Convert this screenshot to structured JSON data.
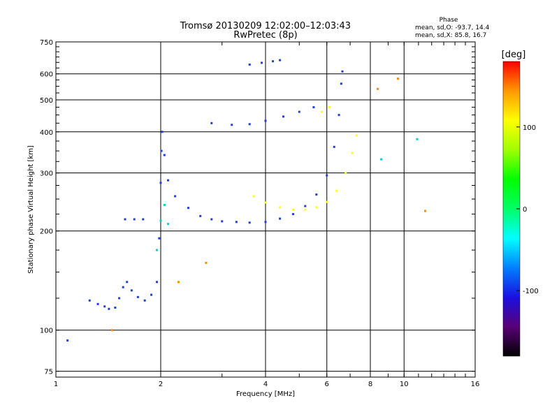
{
  "chart_data": {
    "type": "scatter",
    "title": "Tromsø 20130209 12:02:00–12:03:43",
    "subtitle": "RwPretec (8p)",
    "xlabel": "Frequency [MHz]",
    "ylabel": "Stationary phase Virtual Height [km]",
    "x_scale": "log",
    "y_scale": "log",
    "xlim": [
      1,
      16
    ],
    "ylim": [
      72,
      750
    ],
    "x_ticks": [
      1,
      2,
      4,
      6,
      8,
      10,
      16
    ],
    "y_ticks": [
      75,
      100,
      200,
      300,
      400,
      500,
      600,
      750
    ],
    "grid": true,
    "stats": {
      "heading": "Phase",
      "line_o": "mean, sd,O: -93.7, 14.4",
      "line_x": "mean, sd,X:  85.8, 16.7"
    },
    "colorbar": {
      "label": "[deg]",
      "range": [
        -180,
        180
      ],
      "ticks": [
        -100,
        0,
        100
      ],
      "stops": [
        "#000000",
        "#5a0078",
        "#1a10e0",
        "#0080ff",
        "#00ffff",
        "#00ff66",
        "#00ff00",
        "#a0ff00",
        "#ffff00",
        "#ff9900",
        "#ff0000"
      ]
    },
    "series": [
      {
        "color": "#1f3fd6",
        "points": [
          [
            1.08,
            93
          ],
          [
            1.25,
            123
          ],
          [
            1.32,
            120
          ],
          [
            1.38,
            118
          ],
          [
            1.42,
            116
          ],
          [
            1.48,
            117
          ],
          [
            1.52,
            125
          ],
          [
            1.56,
            135
          ],
          [
            1.6,
            140
          ],
          [
            1.65,
            132
          ],
          [
            1.72,
            126
          ],
          [
            1.8,
            123
          ],
          [
            1.88,
            128
          ],
          [
            1.95,
            140
          ],
          [
            1.98,
            190
          ],
          [
            2.0,
            280
          ],
          [
            2.01,
            350
          ],
          [
            2.02,
            400
          ],
          [
            2.05,
            340
          ],
          [
            2.1,
            285
          ],
          [
            2.2,
            255
          ],
          [
            2.4,
            235
          ],
          [
            2.6,
            222
          ],
          [
            2.8,
            217
          ],
          [
            3.0,
            214
          ],
          [
            3.3,
            213
          ],
          [
            3.6,
            212
          ],
          [
            4.0,
            213
          ],
          [
            4.4,
            218
          ],
          [
            4.8,
            225
          ],
          [
            5.2,
            238
          ],
          [
            5.6,
            258
          ],
          [
            6.0,
            295
          ],
          [
            6.3,
            360
          ],
          [
            6.5,
            450
          ],
          [
            6.6,
            560
          ],
          [
            6.65,
            610
          ],
          [
            1.58,
            217
          ],
          [
            1.68,
            217
          ],
          [
            1.78,
            217
          ],
          [
            2.8,
            425
          ],
          [
            3.2,
            420
          ],
          [
            3.6,
            422
          ],
          [
            4.0,
            432
          ],
          [
            4.5,
            445
          ],
          [
            5.0,
            460
          ],
          [
            5.5,
            475
          ],
          [
            3.6,
            640
          ],
          [
            3.9,
            648
          ],
          [
            4.2,
            655
          ],
          [
            4.4,
            660
          ]
        ]
      },
      {
        "color": "#ffff20",
        "points": [
          [
            3.7,
            255
          ],
          [
            4.0,
            244
          ],
          [
            4.4,
            236
          ],
          [
            4.8,
            232
          ],
          [
            5.2,
            232
          ],
          [
            5.6,
            236
          ],
          [
            6.0,
            245
          ],
          [
            6.4,
            265
          ],
          [
            6.8,
            300
          ],
          [
            7.1,
            345
          ],
          [
            7.3,
            390
          ],
          [
            5.8,
            460
          ],
          [
            6.1,
            475
          ]
        ]
      },
      {
        "color": "#00d0d0",
        "points": [
          [
            2.0,
            215
          ],
          [
            2.05,
            240
          ],
          [
            1.95,
            175
          ],
          [
            2.1,
            210
          ],
          [
            8.6,
            330
          ],
          [
            10.9,
            380
          ]
        ]
      },
      {
        "color": "#ff8c00",
        "points": [
          [
            1.45,
            100
          ],
          [
            2.25,
            140
          ],
          [
            2.7,
            160
          ],
          [
            8.4,
            540
          ],
          [
            9.6,
            580
          ],
          [
            11.5,
            230
          ]
        ]
      }
    ]
  }
}
